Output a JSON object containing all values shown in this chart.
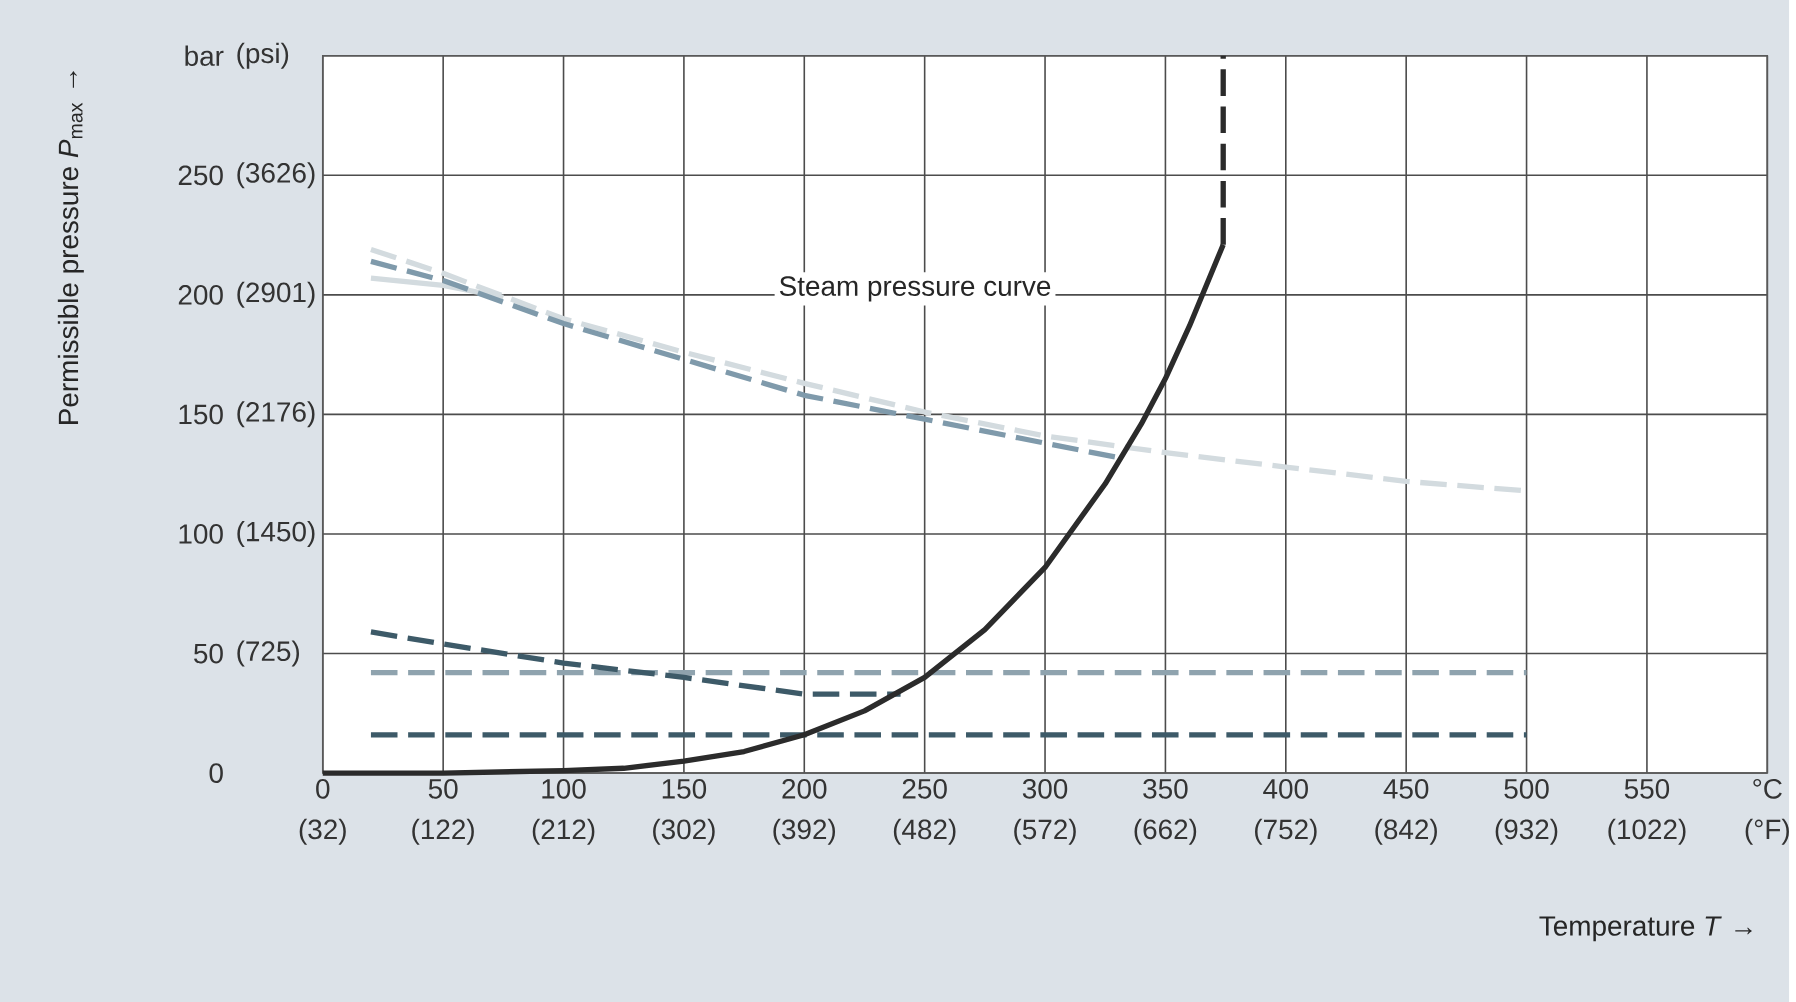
{
  "chart_data": {
    "type": "line",
    "xlabel": "Temperature *T* →",
    "ylabel": "Permissible pressure *P*$_{max}$ →",
    "xlim": [
      0,
      600
    ],
    "ylim": [
      0,
      300
    ],
    "x2lim": [
      32,
      1112
    ],
    "y2lim": [
      0,
      4351
    ],
    "xticks": [
      0,
      50,
      100,
      150,
      200,
      250,
      300,
      350,
      400,
      450,
      500,
      550,
      {
        "value": 600,
        "label": "°C"
      }
    ],
    "x2ticks": [
      {
        "value": 32,
        "label": "(32)"
      },
      {
        "value": 122,
        "label": "(122)"
      },
      {
        "value": 212,
        "label": "(212)"
      },
      {
        "value": 302,
        "label": "(302)"
      },
      {
        "value": 392,
        "label": "(392)"
      },
      {
        "value": 482,
        "label": "(482)"
      },
      {
        "value": 572,
        "label": "(572)"
      },
      {
        "value": 662,
        "label": "(662)"
      },
      {
        "value": 752,
        "label": "(752)"
      },
      {
        "value": 842,
        "label": "(842)"
      },
      {
        "value": 932,
        "label": "(932)"
      },
      {
        "value": 1022,
        "label": "(1022)"
      },
      {
        "value": 1112,
        "label": "(°F)"
      }
    ],
    "yticks": [
      0,
      50,
      100,
      150,
      200,
      250,
      {
        "value": 300,
        "label": "bar"
      }
    ],
    "y2ticks": [
      {
        "value": 725,
        "label": "(725)"
      },
      {
        "value": 1450,
        "label": "(1450)"
      },
      {
        "value": 2176,
        "label": "(2176)"
      },
      {
        "value": 2901,
        "label": "(2901)"
      },
      {
        "value": 3626,
        "label": "(3626)"
      },
      {
        "value": 4351,
        "label": "(psi)"
      }
    ],
    "grid": true,
    "series": [
      {
        "color": "#d3dbdf",
        "line_style": "dashed",
        "x": [
          20,
          50,
          100,
          150,
          200,
          250,
          300,
          350,
          400,
          450,
          500
        ],
        "values": [
          219,
          209,
          190,
          176,
          163,
          151,
          141,
          134,
          128,
          122,
          118
        ]
      },
      {
        "color": "#d3dbdf",
        "line_style": "solid",
        "x": [
          20,
          50,
          75
        ],
        "values": [
          207,
          204,
          199
        ]
      },
      {
        "color": "#7f9aab",
        "line_style": "dashed",
        "x": [
          20,
          50,
          100,
          150,
          200,
          250,
          300,
          330
        ],
        "values": [
          214,
          206,
          188,
          173,
          158,
          148,
          138,
          132
        ]
      },
      {
        "color": "#8fa3ae",
        "line_style": "dashed",
        "x": [
          20,
          500
        ],
        "values": [
          42,
          42
        ]
      },
      {
        "color": "#3d5a68",
        "line_style": "dashed",
        "x": [
          20,
          50,
          100,
          150,
          200,
          240
        ],
        "values": [
          59,
          54,
          46,
          40,
          33,
          33
        ]
      },
      {
        "color": "#3d5a68",
        "line_style": "dashed",
        "x": [
          20,
          500
        ],
        "values": [
          16,
          16
        ]
      },
      {
        "color": "#2b2b2b",
        "line_style": "solid",
        "x": [
          0,
          50,
          100,
          125,
          150,
          175,
          200,
          225,
          250,
          275,
          300,
          325,
          340,
          350,
          360,
          374
        ],
        "values": [
          0,
          0,
          1,
          2,
          5,
          9,
          16,
          26,
          40,
          60,
          86,
          121,
          146,
          165,
          187,
          221
        ]
      },
      {
        "color": "#2b2b2b",
        "line_style": "dashed",
        "x": [
          374,
          374
        ],
        "values": [
          221,
          300
        ]
      }
    ],
    "annotations": [
      "Steam pressure curve"
    ]
  }
}
